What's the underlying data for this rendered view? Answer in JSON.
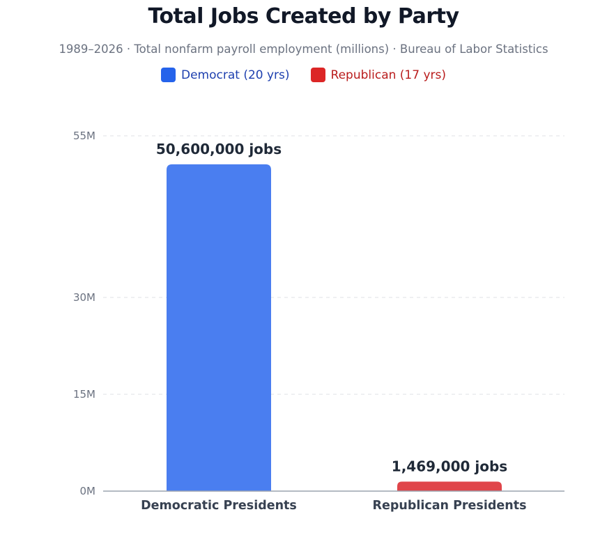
{
  "chart_data": {
    "type": "bar",
    "title": "Total Jobs Created by Party",
    "subtitle": "1989–2026 · Total nonfarm payroll employment (millions) · Bureau of Labor Statistics",
    "legend": [
      {
        "label": "Democrat (20 yrs)",
        "color": "#2563eb",
        "text_color": "#1e40af"
      },
      {
        "label": "Republican (17 yrs)",
        "color": "#dc2626",
        "text_color": "#b91c1c"
      }
    ],
    "categories": [
      "Democratic Presidents",
      "Republican Presidents"
    ],
    "values": [
      50.6,
      1.469
    ],
    "value_labels": [
      "50,600,000 jobs",
      "1,469,000 jobs"
    ],
    "bar_colors": [
      "#4a7ef0",
      "#e0454a"
    ],
    "yticks": [
      0,
      15,
      30,
      55
    ],
    "ytick_labels": [
      "0M",
      "15M",
      "30M",
      "55M"
    ],
    "ylim": [
      0,
      55
    ],
    "grid": true,
    "legend_position": "top-center"
  }
}
